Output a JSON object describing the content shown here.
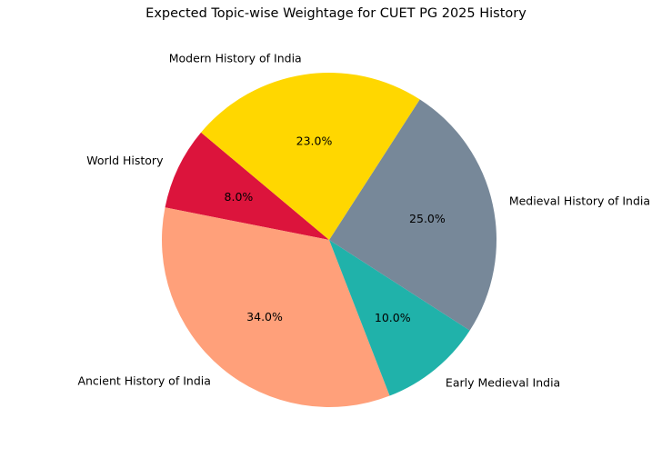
{
  "chart_data": {
    "type": "pie",
    "title": "Expected Topic-wise Weightage for CUET PG 2025 History",
    "start_angle_deg": 140,
    "direction": "counterclockwise",
    "slices": [
      {
        "label": "World History",
        "value": 8.0,
        "pct_label": "8.0%",
        "color": "#DC143C"
      },
      {
        "label": "Ancient History of India",
        "value": 34.0,
        "pct_label": "34.0%",
        "color": "#FFA07A"
      },
      {
        "label": "Early Medieval India",
        "value": 10.0,
        "pct_label": "10.0%",
        "color": "#20B2AA"
      },
      {
        "label": "Medieval History of India",
        "value": 25.0,
        "pct_label": "25.0%",
        "color": "#778899"
      },
      {
        "label": "Modern History of India",
        "value": 23.0,
        "pct_label": "23.0%",
        "color": "#FFD700"
      }
    ]
  }
}
